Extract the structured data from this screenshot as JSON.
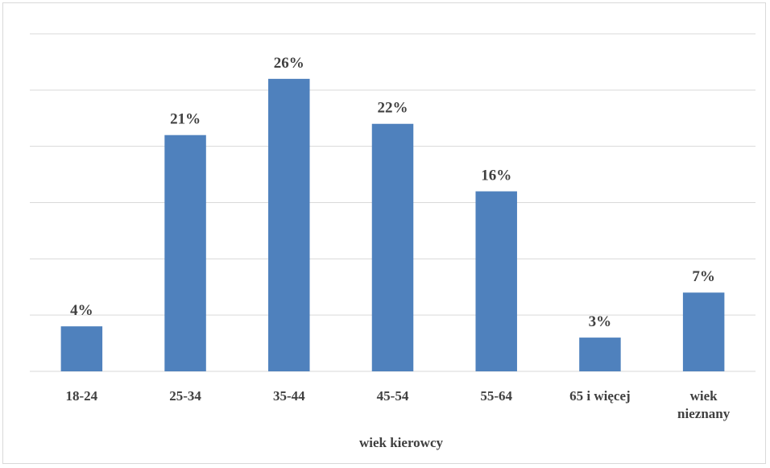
{
  "chart_data": {
    "type": "bar",
    "categories": [
      [
        "18-24"
      ],
      [
        "25-34"
      ],
      [
        "35-44"
      ],
      [
        "45-54"
      ],
      [
        "55-64"
      ],
      [
        "65 i więcej"
      ],
      [
        "wiek",
        "nieznany"
      ]
    ],
    "values": [
      4,
      21,
      26,
      22,
      16,
      3,
      7
    ],
    "value_labels": [
      "4%",
      "21%",
      "26%",
      "22%",
      "16%",
      "3%",
      "7%"
    ],
    "unit": "%",
    "xlabel": "wiek kierowcy",
    "ylabel": "",
    "ylim": [
      0,
      30
    ],
    "grid": true,
    "bar_color": "#4f81bd",
    "gridline_color": "#d9d9d9"
  }
}
